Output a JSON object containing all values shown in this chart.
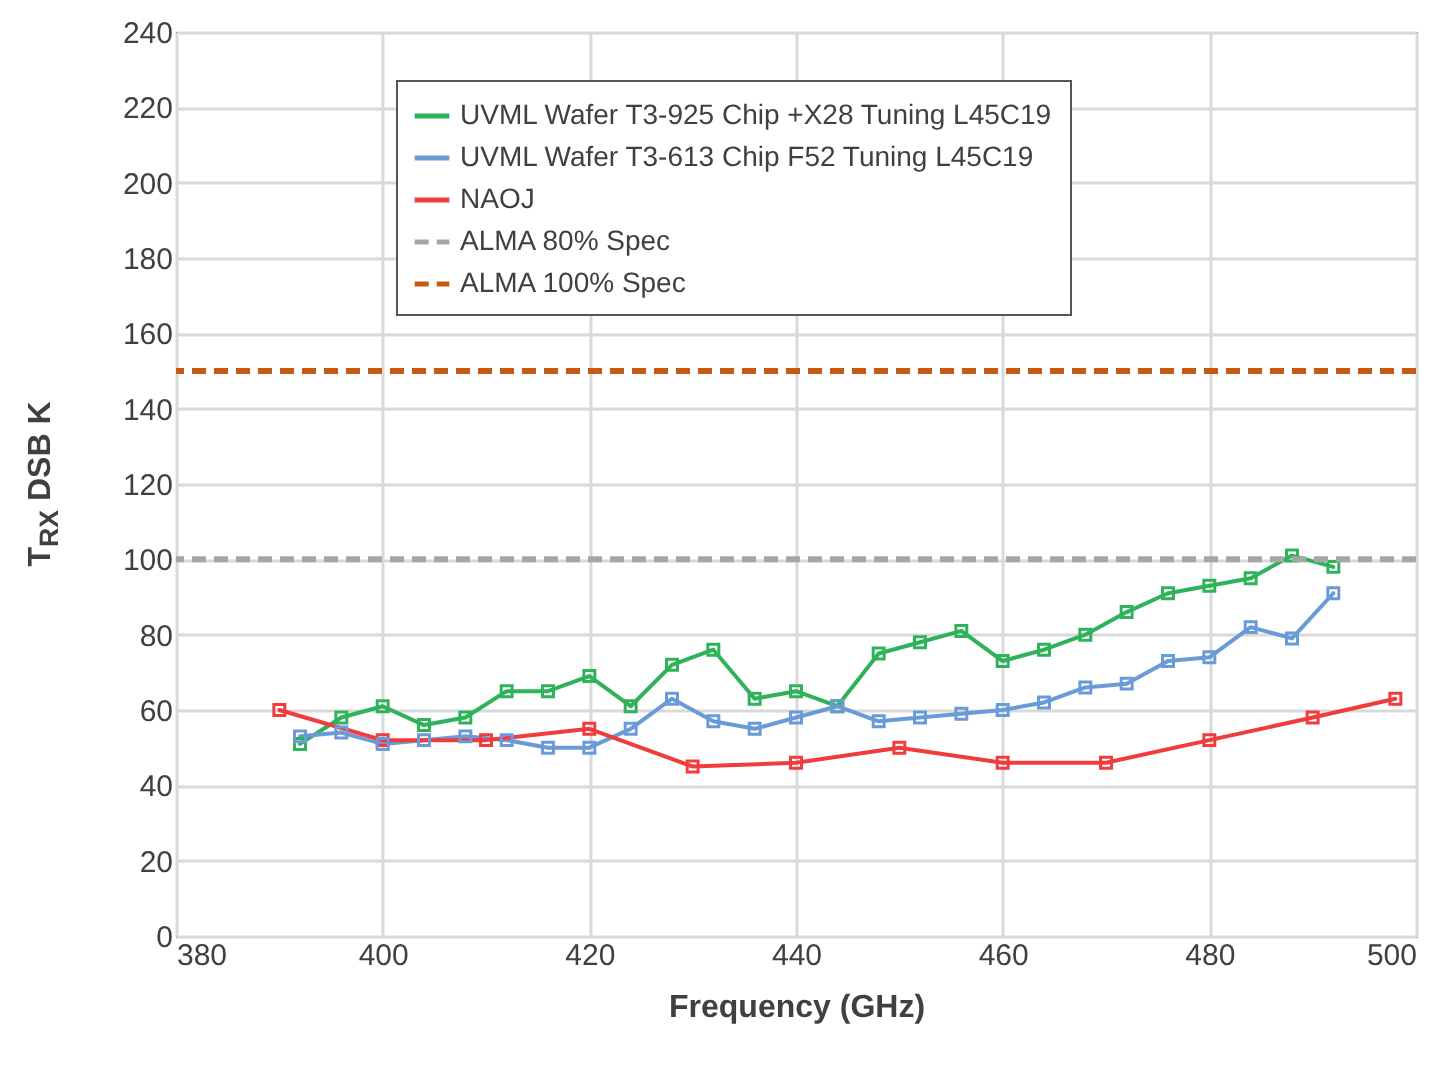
{
  "chart_data": {
    "type": "line",
    "xlabel": "Frequency (GHz)",
    "ylabel": "T$_{RX}$  DSB  K",
    "xlim": [
      380,
      500
    ],
    "xticks": [
      380,
      400,
      420,
      440,
      460,
      480,
      500
    ],
    "ylim": [
      0,
      240
    ],
    "yticks": [
      0,
      20,
      40,
      60,
      80,
      100,
      120,
      140,
      160,
      180,
      200,
      220,
      240
    ],
    "grid": true,
    "legend": "top",
    "marker": "square",
    "line_style": "solid",
    "series": [
      {
        "name": "UVML Wafer T3-925 Chip +X28 Tuning L45C19",
        "color": "#2fb35a",
        "x": [
          392,
          396,
          400,
          404,
          408,
          412,
          416,
          420,
          424,
          428,
          432,
          436,
          440,
          444,
          448,
          452,
          456,
          460,
          464,
          468,
          472,
          476,
          480,
          484,
          488,
          492
        ],
        "values": [
          51,
          58,
          61,
          56,
          58,
          65,
          65,
          69,
          61,
          72,
          76,
          63,
          65,
          61,
          75,
          78,
          81,
          73,
          76,
          80,
          86,
          91,
          93,
          95,
          101,
          98
        ]
      },
      {
        "name": "UVML Wafer T3-613 Chip F52 Tuning L45C19",
        "color": "#6a9bd8",
        "x": [
          392,
          396,
          400,
          404,
          408,
          412,
          416,
          420,
          424,
          428,
          432,
          436,
          440,
          444,
          448,
          452,
          456,
          460,
          464,
          468,
          472,
          476,
          480,
          484,
          488,
          492
        ],
        "values": [
          53,
          54,
          51,
          52,
          53,
          52,
          50,
          50,
          55,
          63,
          57,
          55,
          58,
          61,
          57,
          58,
          59,
          60,
          62,
          66,
          67,
          73,
          74,
          82,
          79,
          91
        ]
      },
      {
        "name": "NAOJ",
        "color": "#f03c3c",
        "x": [
          390,
          400,
          410,
          420,
          430,
          440,
          450,
          460,
          470,
          480,
          490,
          498
        ],
        "values": [
          60,
          52,
          52,
          55,
          45,
          46,
          50,
          46,
          46,
          52,
          58,
          63
        ]
      }
    ],
    "ref_lines": [
      {
        "axis": "y",
        "value": 100,
        "label": "ALMA 80% Spec",
        "color": "#a6a6a6",
        "line_style": "dashed"
      },
      {
        "axis": "y",
        "value": 150,
        "label": "ALMA 100% Spec",
        "color": "#c55a11",
        "line_style": "dashed"
      }
    ]
  }
}
